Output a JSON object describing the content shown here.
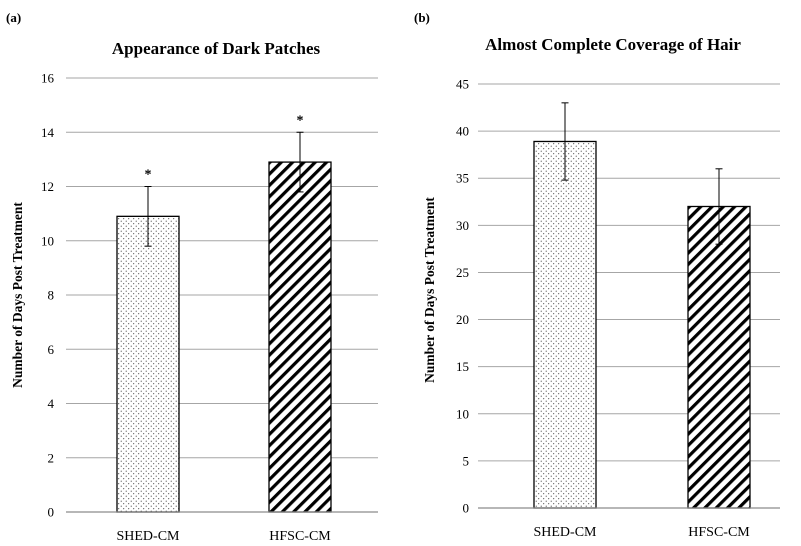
{
  "chart_data": [
    {
      "type": "bar",
      "panel_label": "(a)",
      "title": "Appearance of Dark Patches",
      "xlabel": "",
      "ylabel": "Number of Days Post Treatment",
      "categories": [
        "SHED-CM",
        "HFSC-CM"
      ],
      "values": [
        10.9,
        12.9
      ],
      "error": [
        1.1,
        1.1
      ],
      "annotations": [
        "*",
        "*"
      ],
      "patterns": [
        "dots",
        "diagonal-stripes"
      ],
      "ylim": [
        0,
        16
      ],
      "yticks": [
        0,
        2,
        4,
        6,
        8,
        10,
        12,
        14,
        16
      ],
      "grid": true,
      "legend": "none"
    },
    {
      "type": "bar",
      "panel_label": "(b)",
      "title": "Almost Complete Coverage of Hair",
      "xlabel": "",
      "ylabel": "Number of Days Post Treatment",
      "categories": [
        "SHED-CM",
        "HFSC-CM"
      ],
      "values": [
        38.9,
        32
      ],
      "error": [
        4.1,
        4
      ],
      "annotations": [
        "",
        ""
      ],
      "patterns": [
        "dots",
        "diagonal-stripes"
      ],
      "ylim": [
        0,
        45
      ],
      "yticks": [
        0,
        5,
        10,
        15,
        20,
        25,
        30,
        35,
        40,
        45
      ],
      "grid": true,
      "legend": "none"
    }
  ],
  "colors": {
    "bar_fill": "#ffffff",
    "bar_stroke": "#000000",
    "grid": "#a6a6a6",
    "axis": "#8c8c8c"
  }
}
